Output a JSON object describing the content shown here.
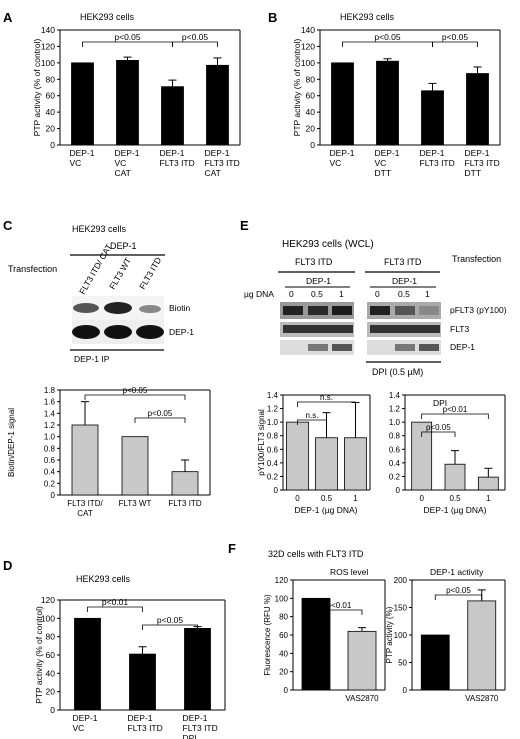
{
  "panels": {
    "A": {
      "letter": "A",
      "title": "HEK293 cells",
      "ylabel": "PTP activity (% of control)",
      "yticks": [
        "0",
        "20",
        "40",
        "60",
        "80",
        "100",
        "120",
        "140"
      ],
      "sig": [
        "p<0.05",
        "p<0.05"
      ],
      "bar_labels": [
        [
          "DEP-1",
          "VC"
        ],
        [
          "DEP-1",
          "VC",
          "CAT"
        ],
        [
          "DEP-1",
          "FLT3 ITD"
        ],
        [
          "DEP-1",
          "FLT3 ITD",
          "CAT"
        ]
      ]
    },
    "B": {
      "letter": "B",
      "title": "HEK293 cells",
      "ylabel": "PTP activity (% of control)",
      "yticks": [
        "0",
        "20",
        "40",
        "60",
        "80",
        "100",
        "120",
        "140"
      ],
      "sig": [
        "p<0.05",
        "p<0.05"
      ],
      "bar_labels": [
        [
          "DEP-1",
          "VC"
        ],
        [
          "DEP-1",
          "VC",
          "DTT"
        ],
        [
          "DEP-1",
          "FLT3 ITD"
        ],
        [
          "DEP-1",
          "FLT3 ITD",
          "DTT"
        ]
      ]
    },
    "C": {
      "letter": "C",
      "title": "HEK293 cells",
      "protein": "DEP-1",
      "transfection": "Transfection",
      "lanes": [
        "FLT3 ITD/ CAT",
        "FLT3 WT",
        "FLT3 ITD"
      ],
      "blots": [
        "Biotin",
        "DEP-1"
      ],
      "ip": "DEP-1 IP",
      "ylabel": "Biotin/DEP-1 signal",
      "yticks": [
        "0",
        "0.2",
        "0.4",
        "0.6",
        "0.8",
        "1.0",
        "1.2",
        "1.4",
        "1.6",
        "1.8"
      ],
      "sig": [
        "p<0.05",
        "p<0.05"
      ],
      "bar_labels": [
        [
          "FLT3 ITD/",
          "CAT"
        ],
        [
          "FLT3 WT"
        ],
        [
          "FLT3 ITD"
        ]
      ]
    },
    "D": {
      "letter": "D",
      "title": "HEK293 cells",
      "ylabel": "PTP activity (% of control)",
      "yticks": [
        "0",
        "20",
        "40",
        "60",
        "80",
        "100",
        "120"
      ],
      "sig": [
        "p<0.01",
        "p<0.05"
      ],
      "bar_labels": [
        [
          "DEP-1",
          "VC"
        ],
        [
          "DEP-1",
          "FLT3 ITD"
        ],
        [
          "DEP-1",
          "FLT3 ITD",
          "DPI"
        ]
      ]
    },
    "E": {
      "letter": "E",
      "title": "HEK293 cells (WCL)",
      "groups": [
        "FLT3 ITD",
        "FLT3 ITD"
      ],
      "transfection": "Transfection",
      "protein": "DEP-1",
      "dna_label": "µg DNA",
      "doses": [
        "0",
        "0.5",
        "1"
      ],
      "blots": [
        "pFLT3 (pY100)",
        "FLT3",
        "DEP-1"
      ],
      "dpi": "DPI (0.5 µM)",
      "ylabel": "pY100/FLT3 signal",
      "yticks": [
        "0",
        "0.2",
        "0.4",
        "0.6",
        "0.8",
        "1.0",
        "1.2",
        "1.4"
      ],
      "xlabel": "DEP-1 (µg DNA)",
      "sig_left": [
        "n.s.",
        "n.s."
      ],
      "sig_right": [
        "p<0.05",
        "p<0.01"
      ],
      "right_tag": "DPI"
    },
    "F": {
      "letter": "F",
      "title": "32D cells with FLT3 ITD",
      "left_title": "ROS level",
      "right_title": "DEP-1 activity",
      "left_ylabel": "Fluorescence (RFU %)",
      "right_ylabel": "PTP activity (%)",
      "left_yticks": [
        "0",
        "20",
        "40",
        "60",
        "80",
        "100",
        "120"
      ],
      "right_yticks": [
        "0",
        "50",
        "100",
        "150",
        "200"
      ],
      "sig_left": "p<0.01",
      "sig_right": "p<0.05",
      "xlabel": "VAS2870"
    }
  },
  "chart_data": [
    {
      "type": "bar",
      "panel": "A",
      "categories": [
        "DEP-1 VC",
        "DEP-1 VC CAT",
        "DEP-1 FLT3 ITD",
        "DEP-1 FLT3 ITD CAT"
      ],
      "values": [
        100,
        103,
        71,
        97
      ],
      "errors": [
        0,
        4,
        8,
        9
      ],
      "ylabel": "PTP activity (% of control)",
      "ylim": [
        0,
        140
      ],
      "color": "#000000"
    },
    {
      "type": "bar",
      "panel": "B",
      "categories": [
        "DEP-1 VC",
        "DEP-1 VC DTT",
        "DEP-1 FLT3 ITD",
        "DEP-1 FLT3 ITD DTT"
      ],
      "values": [
        100,
        102,
        66,
        87
      ],
      "errors": [
        0,
        3,
        9,
        8
      ],
      "ylabel": "PTP activity (% of control)",
      "ylim": [
        0,
        140
      ],
      "color": "#000000"
    },
    {
      "type": "bar",
      "panel": "C",
      "categories": [
        "FLT3 ITD/ CAT",
        "FLT3 WT",
        "FLT3 ITD"
      ],
      "values": [
        1.2,
        1.0,
        0.4
      ],
      "errors": [
        0.4,
        0,
        0.2
      ],
      "ylabel": "Biotin/DEP-1 signal",
      "ylim": [
        0,
        1.8
      ],
      "color": "#c8c8c8"
    },
    {
      "type": "bar",
      "panel": "D",
      "categories": [
        "DEP-1 VC",
        "DEP-1 FLT3 ITD",
        "DEP-1 FLT3 ITD DPI"
      ],
      "values": [
        100,
        61,
        89
      ],
      "errors": [
        0,
        8,
        2
      ],
      "ylabel": "PTP activity (% of control)",
      "ylim": [
        0,
        120
      ],
      "color": "#000000"
    },
    {
      "type": "bar",
      "panel": "E-left",
      "categories": [
        "0",
        "0.5",
        "1"
      ],
      "values": [
        1.0,
        0.77,
        0.77
      ],
      "errors": [
        0,
        0.37,
        0.52
      ],
      "ylabel": "pY100/FLT3 signal",
      "xlabel": "DEP-1 (µg DNA)",
      "ylim": [
        0,
        1.4
      ],
      "color": "#c8c8c8"
    },
    {
      "type": "bar",
      "panel": "E-right",
      "categories": [
        "0",
        "0.5",
        "1"
      ],
      "values": [
        1.0,
        0.38,
        0.19
      ],
      "errors": [
        0,
        0.2,
        0.13
      ],
      "xlabel": "DEP-1 (µg DNA)",
      "ylim": [
        0,
        1.4
      ],
      "color": "#c8c8c8"
    },
    {
      "type": "bar",
      "panel": "F-left",
      "categories": [
        "",
        "VAS2870"
      ],
      "values": [
        100,
        64
      ],
      "errors": [
        0,
        4
      ],
      "ylabel": "Fluorescence (RFU %)",
      "ylim": [
        0,
        120
      ],
      "colors": [
        "#000000",
        "#c8c8c8"
      ]
    },
    {
      "type": "bar",
      "panel": "F-right",
      "categories": [
        "",
        "VAS2870"
      ],
      "values": [
        100,
        162
      ],
      "errors": [
        0,
        20
      ],
      "ylabel": "PTP activity (%)",
      "ylim": [
        0,
        200
      ],
      "colors": [
        "#000000",
        "#c8c8c8"
      ]
    }
  ]
}
